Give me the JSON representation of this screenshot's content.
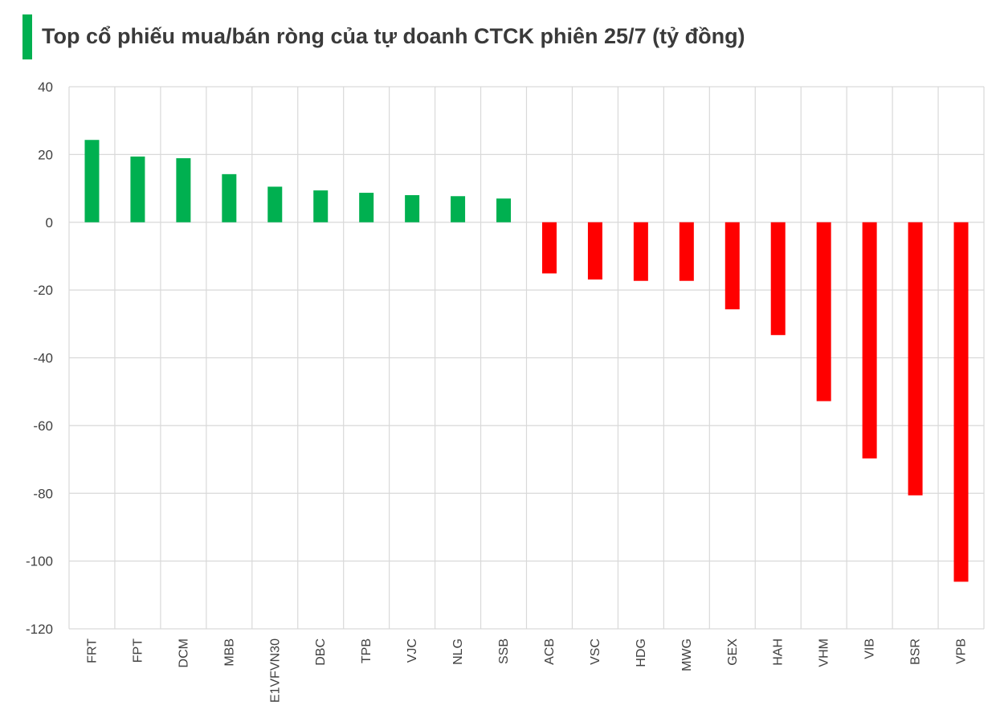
{
  "title": "Top cổ phiếu mua/bán ròng của tự doanh CTCK phiên 25/7 (tỷ đồng)",
  "colors": {
    "positive": "#00b050",
    "negative": "#ff0000",
    "grid": "#d9d9d9",
    "title_marker": "#00b050"
  },
  "chart_data": {
    "type": "bar",
    "title": "Top cổ phiếu mua/bán ròng của tự doanh CTCK phiên 25/7 (tỷ đồng)",
    "xlabel": "",
    "ylabel": "",
    "categories": [
      "FRT",
      "FPT",
      "DCM",
      "MBB",
      "E1VFVN30",
      "DBC",
      "TPB",
      "VJC",
      "NLG",
      "SSB",
      "ACB",
      "VSC",
      "HDG",
      "MWG",
      "GEX",
      "HAH",
      "VHM",
      "VIB",
      "BSR",
      "VPB"
    ],
    "values": [
      24.3,
      19.4,
      18.9,
      14.2,
      10.5,
      9.4,
      8.7,
      8.0,
      7.7,
      7.0,
      -15.1,
      -16.9,
      -17.3,
      -17.3,
      -25.7,
      -33.3,
      -52.8,
      -69.7,
      -80.6,
      -106.1
    ],
    "ylim": [
      -120,
      40
    ],
    "yticks": [
      40,
      20,
      0,
      -20,
      -40,
      -60,
      -80,
      -100,
      -120
    ],
    "grid": true,
    "legend": "none"
  }
}
